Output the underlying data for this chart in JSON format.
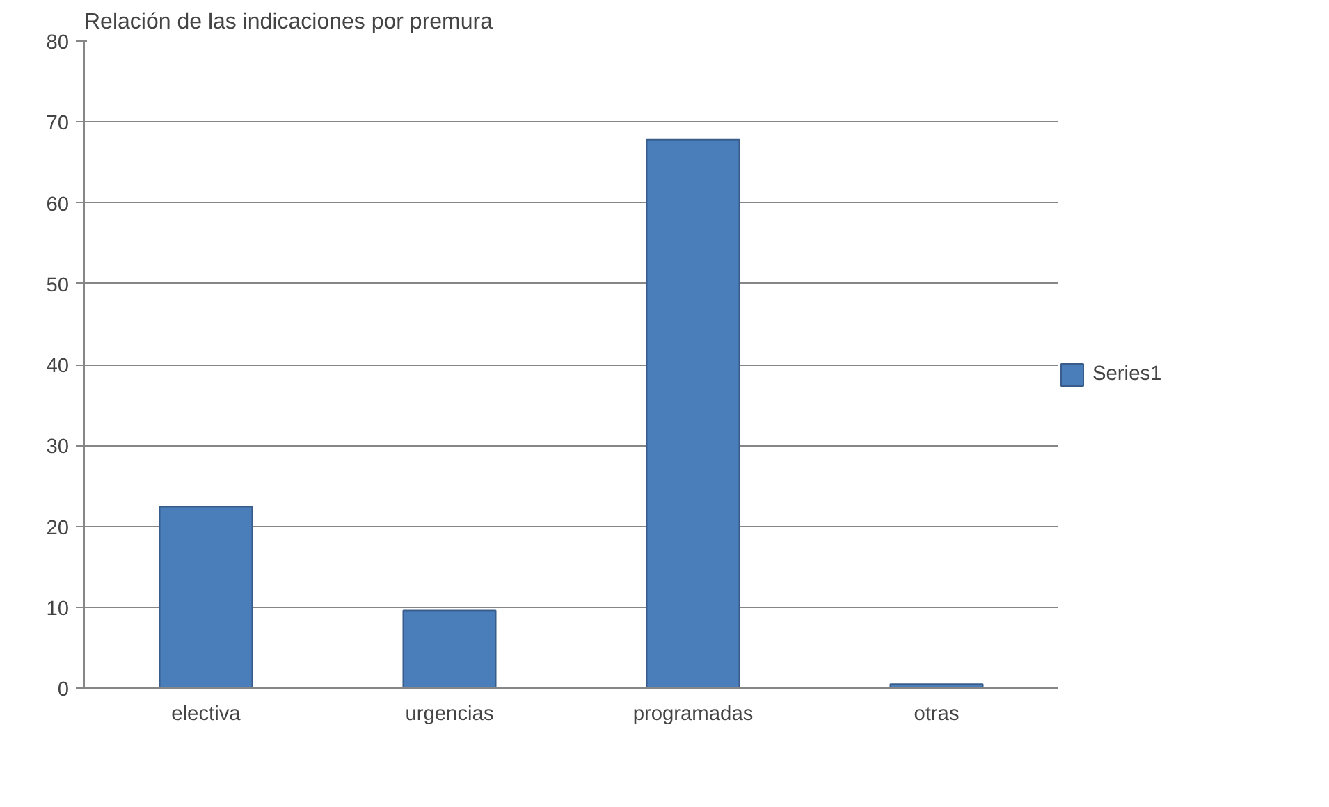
{
  "chart_data": {
    "type": "bar",
    "title": "Relación de las indicaciones por premura",
    "categories": [
      "electiva",
      "urgencias",
      "programadas",
      "otras"
    ],
    "series": [
      {
        "name": "Series1",
        "color": "#4a7ebb",
        "values": [
          22.4,
          9.6,
          67.8,
          0.5
        ]
      }
    ],
    "ylim": [
      0,
      80
    ],
    "yticks": [
      0,
      10,
      20,
      30,
      40,
      50,
      60,
      70,
      80
    ],
    "grid": "y",
    "legend": "right"
  }
}
